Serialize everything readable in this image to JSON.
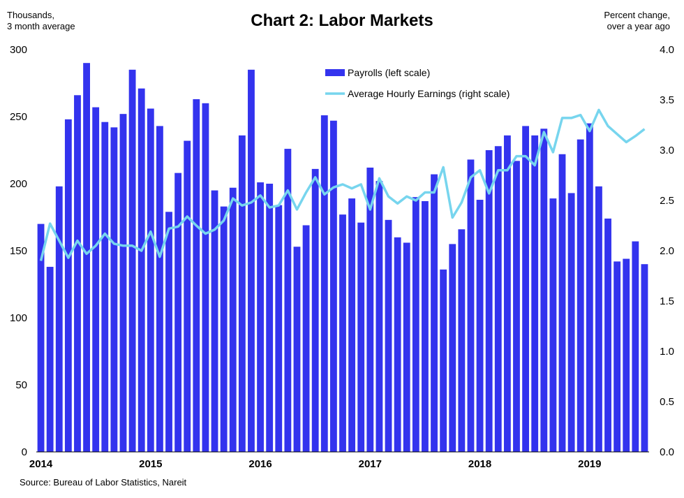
{
  "chart_data": {
    "type": "bar",
    "title": "Chart 2: Labor Markets",
    "left_axis_label_line1": "Thousands,",
    "left_axis_label_line2": "3 month average",
    "right_axis_label_line1": "Percent change,",
    "right_axis_label_line2": "over a year ago",
    "source": "Source: Bureau of Labor Statistics, Nareit",
    "ylim_left": [
      0,
      300
    ],
    "ylim_right": [
      0.0,
      4.0
    ],
    "y_ticks_left": [
      "0",
      "50",
      "100",
      "150",
      "200",
      "250",
      "300"
    ],
    "y_ticks_right": [
      "0.0",
      "0.5",
      "1.0",
      "1.5",
      "2.0",
      "2.5",
      "3.0",
      "3.5",
      "4.0"
    ],
    "x_year_labels": [
      "2014",
      "2015",
      "2016",
      "2017",
      "2018",
      "2019"
    ],
    "x_start": "2014-01",
    "legend_position": "top-center",
    "colors": {
      "payrolls": "#3333ee",
      "earnings": "#77d5ee"
    },
    "series": [
      {
        "name": "Payrolls (left scale)",
        "type": "bar",
        "axis": "left",
        "values": [
          170,
          138,
          198,
          248,
          266,
          290,
          257,
          246,
          242,
          252,
          285,
          271,
          256,
          243,
          179,
          208,
          232,
          263,
          260,
          195,
          183,
          197,
          236,
          285,
          201,
          200,
          184,
          226,
          153,
          169,
          211,
          251,
          247,
          177,
          189,
          171,
          212,
          202,
          173,
          160,
          156,
          190,
          187,
          207,
          136,
          155,
          166,
          218,
          188,
          225,
          228,
          236,
          217,
          243,
          236,
          241,
          189,
          222,
          193,
          233,
          245,
          198,
          174,
          142,
          144,
          157,
          140
        ]
      },
      {
        "name": "Average Hourly Earnings (right scale)",
        "type": "line",
        "axis": "right",
        "values": [
          1.9,
          2.27,
          2.1,
          1.93,
          2.1,
          1.97,
          2.05,
          2.17,
          2.07,
          2.05,
          2.05,
          2.0,
          2.19,
          1.94,
          2.22,
          2.24,
          2.34,
          2.25,
          2.17,
          2.21,
          2.3,
          2.52,
          2.45,
          2.48,
          2.55,
          2.43,
          2.45,
          2.6,
          2.41,
          2.58,
          2.73,
          2.56,
          2.63,
          2.66,
          2.62,
          2.66,
          2.41,
          2.72,
          2.54,
          2.47,
          2.54,
          2.5,
          2.58,
          2.58,
          2.83,
          2.33,
          2.48,
          2.73,
          2.8,
          2.57,
          2.8,
          2.8,
          2.94,
          2.94,
          2.85,
          3.18,
          2.98,
          3.32,
          3.32,
          3.35,
          3.19,
          3.4,
          3.24,
          3.16,
          3.08,
          3.14,
          3.21
        ]
      }
    ]
  }
}
